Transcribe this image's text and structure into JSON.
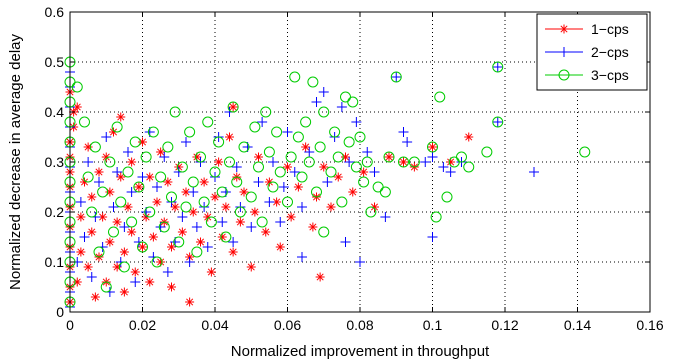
{
  "chart_data": {
    "type": "scatter",
    "title": "",
    "xlabel": "Normalized improvement in throughput",
    "ylabel": "Normalized decrease in average delay",
    "xlim": [
      0,
      0.16
    ],
    "ylim": [
      0,
      0.6
    ],
    "xticks": [
      "0",
      "0.02",
      "0.04",
      "0.06",
      "0.08",
      "0.1",
      "0.12",
      "0.14",
      "0.16"
    ],
    "yticks": [
      "0",
      "0.1",
      "0.2",
      "0.3",
      "0.4",
      "0.5",
      "0.6"
    ],
    "grid": true,
    "legend_position": "top-right",
    "series": [
      {
        "name": "1−cps",
        "marker": "asterisk",
        "color": "#ff0000",
        "points": [
          [
            0.0,
            0.02
          ],
          [
            0.0,
            0.05
          ],
          [
            0.0,
            0.09
          ],
          [
            0.0,
            0.13
          ],
          [
            0.0,
            0.17
          ],
          [
            0.0,
            0.21
          ],
          [
            0.0,
            0.25
          ],
          [
            0.0,
            0.28
          ],
          [
            0.0,
            0.31
          ],
          [
            0.0,
            0.34
          ],
          [
            0.001,
            0.37
          ],
          [
            0.001,
            0.4
          ],
          [
            0.002,
            0.06
          ],
          [
            0.003,
            0.12
          ],
          [
            0.003,
            0.19
          ],
          [
            0.004,
            0.26
          ],
          [
            0.005,
            0.09
          ],
          [
            0.005,
            0.33
          ],
          [
            0.006,
            0.16
          ],
          [
            0.006,
            0.23
          ],
          [
            0.007,
            0.03
          ],
          [
            0.008,
            0.11
          ],
          [
            0.008,
            0.28
          ],
          [
            0.009,
            0.19
          ],
          [
            0.01,
            0.06
          ],
          [
            0.01,
            0.31
          ],
          [
            0.011,
            0.14
          ],
          [
            0.011,
            0.24
          ],
          [
            0.012,
            0.36
          ],
          [
            0.013,
            0.09
          ],
          [
            0.013,
            0.18
          ],
          [
            0.014,
            0.27
          ],
          [
            0.015,
            0.12
          ],
          [
            0.015,
            0.04
          ],
          [
            0.016,
            0.21
          ],
          [
            0.017,
            0.3
          ],
          [
            0.017,
            0.16
          ],
          [
            0.018,
            0.08
          ],
          [
            0.019,
            0.25
          ],
          [
            0.02,
            0.13
          ],
          [
            0.02,
            0.34
          ],
          [
            0.021,
            0.19
          ],
          [
            0.022,
            0.06
          ],
          [
            0.022,
            0.27
          ],
          [
            0.023,
            0.15
          ],
          [
            0.024,
            0.22
          ],
          [
            0.025,
            0.1
          ],
          [
            0.025,
            0.32
          ],
          [
            0.026,
            0.18
          ],
          [
            0.027,
            0.26
          ],
          [
            0.028,
            0.13
          ],
          [
            0.028,
            0.05
          ],
          [
            0.029,
            0.21
          ],
          [
            0.03,
            0.29
          ],
          [
            0.031,
            0.16
          ],
          [
            0.032,
            0.24
          ],
          [
            0.033,
            0.11
          ],
          [
            0.033,
            0.02
          ],
          [
            0.034,
            0.2
          ],
          [
            0.035,
            0.31
          ],
          [
            0.036,
            0.14
          ],
          [
            0.037,
            0.26
          ],
          [
            0.038,
            0.19
          ],
          [
            0.039,
            0.08
          ],
          [
            0.04,
            0.23
          ],
          [
            0.041,
            0.3
          ],
          [
            0.042,
            0.15
          ],
          [
            0.043,
            0.21
          ],
          [
            0.044,
            0.35
          ],
          [
            0.045,
            0.12
          ],
          [
            0.046,
            0.27
          ],
          [
            0.047,
            0.18
          ],
          [
            0.048,
            0.24
          ],
          [
            0.05,
            0.09
          ],
          [
            0.051,
            0.2
          ],
          [
            0.052,
            0.31
          ],
          [
            0.054,
            0.16
          ],
          [
            0.055,
            0.26
          ],
          [
            0.057,
            0.22
          ],
          [
            0.058,
            0.13
          ],
          [
            0.06,
            0.29
          ],
          [
            0.061,
            0.19
          ],
          [
            0.063,
            0.25
          ],
          [
            0.065,
            0.33
          ],
          [
            0.067,
            0.17
          ],
          [
            0.068,
            0.23
          ],
          [
            0.069,
            0.07
          ],
          [
            0.07,
            0.29
          ],
          [
            0.072,
            0.21
          ],
          [
            0.074,
            0.27
          ],
          [
            0.076,
            0.31
          ],
          [
            0.078,
            0.24
          ],
          [
            0.081,
            0.28
          ],
          [
            0.084,
            0.21
          ],
          [
            0.088,
            0.31
          ],
          [
            0.092,
            0.3
          ],
          [
            0.095,
            0.29
          ],
          [
            0.1,
            0.33
          ],
          [
            0.105,
            0.3
          ],
          [
            0.11,
            0.35
          ],
          [
            0.0,
            0.44
          ],
          [
            0.002,
            0.41
          ],
          [
            0.014,
            0.39
          ],
          [
            0.045,
            0.41
          ]
        ]
      },
      {
        "name": "2−cps",
        "marker": "plus",
        "color": "#0000ff",
        "points": [
          [
            0.0,
            0.01
          ],
          [
            0.0,
            0.04
          ],
          [
            0.0,
            0.08
          ],
          [
            0.0,
            0.12
          ],
          [
            0.0,
            0.16
          ],
          [
            0.0,
            0.2
          ],
          [
            0.0,
            0.24
          ],
          [
            0.0,
            0.29
          ],
          [
            0.0,
            0.33
          ],
          [
            0.0,
            0.37
          ],
          [
            0.0,
            0.41
          ],
          [
            0.0,
            0.45
          ],
          [
            0.0,
            0.48
          ],
          [
            0.002,
            0.1
          ],
          [
            0.003,
            0.22
          ],
          [
            0.004,
            0.15
          ],
          [
            0.005,
            0.3
          ],
          [
            0.006,
            0.07
          ],
          [
            0.007,
            0.19
          ],
          [
            0.008,
            0.26
          ],
          [
            0.009,
            0.13
          ],
          [
            0.01,
            0.35
          ],
          [
            0.011,
            0.04
          ],
          [
            0.012,
            0.21
          ],
          [
            0.013,
            0.28
          ],
          [
            0.014,
            0.1
          ],
          [
            0.015,
            0.17
          ],
          [
            0.016,
            0.32
          ],
          [
            0.017,
            0.24
          ],
          [
            0.018,
            0.06
          ],
          [
            0.019,
            0.14
          ],
          [
            0.02,
            0.27
          ],
          [
            0.021,
            0.2
          ],
          [
            0.022,
            0.36
          ],
          [
            0.023,
            0.11
          ],
          [
            0.024,
            0.25
          ],
          [
            0.025,
            0.17
          ],
          [
            0.026,
            0.31
          ],
          [
            0.027,
            0.08
          ],
          [
            0.028,
            0.22
          ],
          [
            0.029,
            0.14
          ],
          [
            0.03,
            0.28
          ],
          [
            0.031,
            0.19
          ],
          [
            0.032,
            0.34
          ],
          [
            0.033,
            0.1
          ],
          [
            0.034,
            0.24
          ],
          [
            0.035,
            0.17
          ],
          [
            0.036,
            0.3
          ],
          [
            0.037,
            0.21
          ],
          [
            0.038,
            0.13
          ],
          [
            0.04,
            0.27
          ],
          [
            0.041,
            0.35
          ],
          [
            0.042,
            0.18
          ],
          [
            0.043,
            0.24
          ],
          [
            0.044,
            0.4
          ],
          [
            0.045,
            0.14
          ],
          [
            0.046,
            0.29
          ],
          [
            0.047,
            0.21
          ],
          [
            0.049,
            0.33
          ],
          [
            0.05,
            0.17
          ],
          [
            0.052,
            0.26
          ],
          [
            0.053,
            0.38
          ],
          [
            0.055,
            0.22
          ],
          [
            0.056,
            0.3
          ],
          [
            0.058,
            0.18
          ],
          [
            0.059,
            0.25
          ],
          [
            0.06,
            0.36
          ],
          [
            0.062,
            0.28
          ],
          [
            0.064,
            0.21
          ],
          [
            0.066,
            0.32
          ],
          [
            0.068,
            0.42
          ],
          [
            0.07,
            0.44
          ],
          [
            0.071,
            0.26
          ],
          [
            0.073,
            0.35
          ],
          [
            0.075,
            0.41
          ],
          [
            0.077,
            0.3
          ],
          [
            0.079,
            0.38
          ],
          [
            0.08,
            0.1
          ],
          [
            0.082,
            0.32
          ],
          [
            0.084,
            0.28
          ],
          [
            0.087,
            0.19
          ],
          [
            0.09,
            0.47
          ],
          [
            0.092,
            0.36
          ],
          [
            0.093,
            0.34
          ],
          [
            0.098,
            0.3
          ],
          [
            0.1,
            0.31
          ],
          [
            0.103,
            0.29
          ],
          [
            0.105,
            0.28
          ],
          [
            0.1,
            0.15
          ],
          [
            0.108,
            0.3
          ],
          [
            0.118,
            0.49
          ],
          [
            0.118,
            0.38
          ],
          [
            0.128,
            0.28
          ],
          [
            0.076,
            0.14
          ],
          [
            0.064,
            0.11
          ],
          [
            0.08,
            0.1
          ]
        ]
      },
      {
        "name": "3−cps",
        "marker": "circle",
        "color": "#00cc00",
        "points": [
          [
            0.0,
            0.5
          ],
          [
            0.0,
            0.46
          ],
          [
            0.0,
            0.42
          ],
          [
            0.0,
            0.38
          ],
          [
            0.0,
            0.34
          ],
          [
            0.0,
            0.3
          ],
          [
            0.0,
            0.26
          ],
          [
            0.0,
            0.22
          ],
          [
            0.0,
            0.18
          ],
          [
            0.0,
            0.14
          ],
          [
            0.0,
            0.1
          ],
          [
            0.0,
            0.06
          ],
          [
            0.0,
            0.02
          ],
          [
            0.002,
            0.45
          ],
          [
            0.004,
            0.38
          ],
          [
            0.005,
            0.27
          ],
          [
            0.006,
            0.2
          ],
          [
            0.007,
            0.33
          ],
          [
            0.008,
            0.12
          ],
          [
            0.009,
            0.24
          ],
          [
            0.01,
            0.05
          ],
          [
            0.011,
            0.3
          ],
          [
            0.012,
            0.16
          ],
          [
            0.013,
            0.37
          ],
          [
            0.014,
            0.22
          ],
          [
            0.015,
            0.09
          ],
          [
            0.016,
            0.28
          ],
          [
            0.017,
            0.18
          ],
          [
            0.018,
            0.34
          ],
          [
            0.019,
            0.25
          ],
          [
            0.02,
            0.13
          ],
          [
            0.021,
            0.31
          ],
          [
            0.022,
            0.2
          ],
          [
            0.023,
            0.36
          ],
          [
            0.024,
            0.1
          ],
          [
            0.025,
            0.27
          ],
          [
            0.026,
            0.17
          ],
          [
            0.027,
            0.33
          ],
          [
            0.028,
            0.23
          ],
          [
            0.029,
            0.4
          ],
          [
            0.03,
            0.14
          ],
          [
            0.031,
            0.29
          ],
          [
            0.032,
            0.21
          ],
          [
            0.033,
            0.36
          ],
          [
            0.034,
            0.26
          ],
          [
            0.035,
            0.12
          ],
          [
            0.036,
            0.31
          ],
          [
            0.037,
            0.22
          ],
          [
            0.038,
            0.38
          ],
          [
            0.039,
            0.18
          ],
          [
            0.04,
            0.28
          ],
          [
            0.041,
            0.34
          ],
          [
            0.042,
            0.24
          ],
          [
            0.043,
            0.15
          ],
          [
            0.044,
            0.3
          ],
          [
            0.045,
            0.41
          ],
          [
            0.046,
            0.26
          ],
          [
            0.047,
            0.2
          ],
          [
            0.048,
            0.33
          ],
          [
            0.05,
            0.23
          ],
          [
            0.051,
            0.37
          ],
          [
            0.052,
            0.29
          ],
          [
            0.053,
            0.18
          ],
          [
            0.054,
            0.4
          ],
          [
            0.055,
            0.32
          ],
          [
            0.056,
            0.25
          ],
          [
            0.057,
            0.36
          ],
          [
            0.058,
            0.28
          ],
          [
            0.06,
            0.22
          ],
          [
            0.061,
            0.31
          ],
          [
            0.062,
            0.47
          ],
          [
            0.063,
            0.35
          ],
          [
            0.064,
            0.27
          ],
          [
            0.065,
            0.38
          ],
          [
            0.066,
            0.3
          ],
          [
            0.067,
            0.46
          ],
          [
            0.068,
            0.24
          ],
          [
            0.069,
            0.33
          ],
          [
            0.07,
            0.4
          ],
          [
            0.072,
            0.28
          ],
          [
            0.073,
            0.36
          ],
          [
            0.074,
            0.31
          ],
          [
            0.075,
            0.22
          ],
          [
            0.076,
            0.43
          ],
          [
            0.077,
            0.34
          ],
          [
            0.078,
            0.42
          ],
          [
            0.079,
            0.29
          ],
          [
            0.08,
            0.35
          ],
          [
            0.081,
            0.26
          ],
          [
            0.082,
            0.3
          ],
          [
            0.083,
            0.2
          ],
          [
            0.085,
            0.25
          ],
          [
            0.088,
            0.31
          ],
          [
            0.09,
            0.47
          ],
          [
            0.092,
            0.3
          ],
          [
            0.095,
            0.3
          ],
          [
            0.102,
            0.43
          ],
          [
            0.1,
            0.33
          ],
          [
            0.101,
            0.19
          ],
          [
            0.106,
            0.3
          ],
          [
            0.108,
            0.31
          ],
          [
            0.11,
            0.29
          ],
          [
            0.104,
            0.23
          ],
          [
            0.115,
            0.32
          ],
          [
            0.118,
            0.49
          ],
          [
            0.118,
            0.38
          ],
          [
            0.142,
            0.32
          ],
          [
            0.087,
            0.24
          ],
          [
            0.07,
            0.16
          ]
        ]
      }
    ]
  }
}
